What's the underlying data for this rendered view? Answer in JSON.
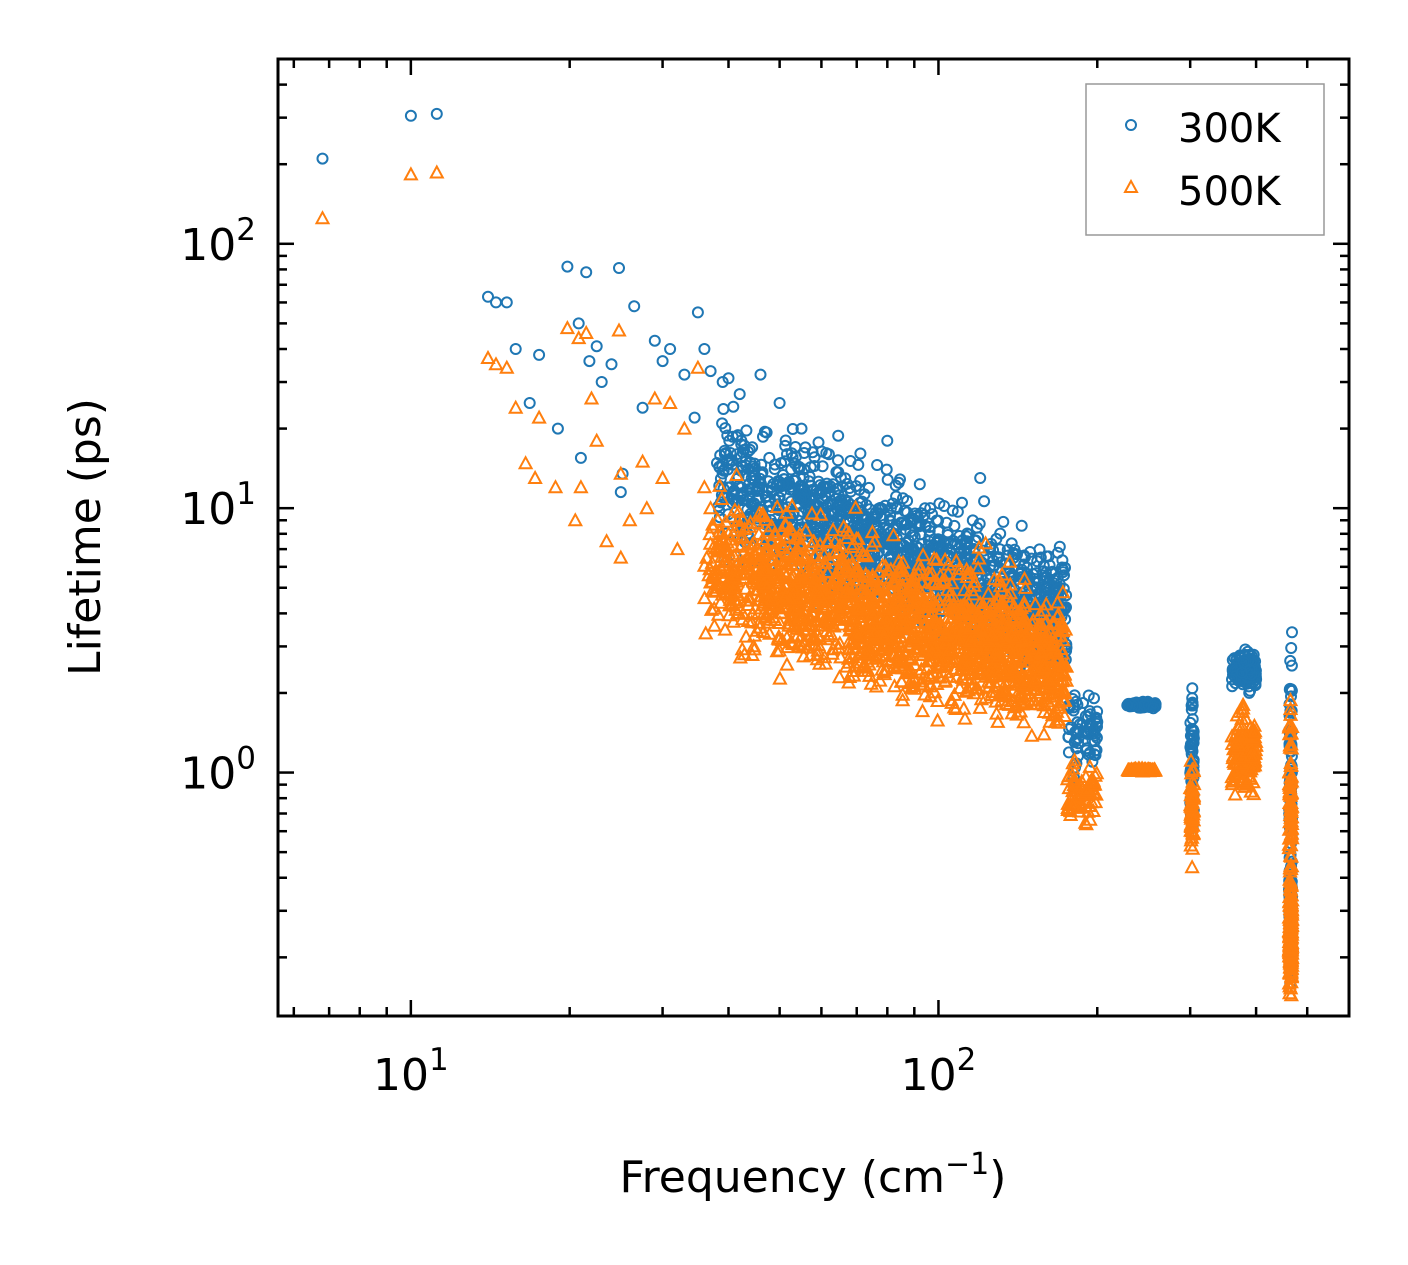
{
  "chart_data": {
    "type": "scatter",
    "xscale": "log",
    "yscale": "log",
    "xlim": [
      5.6,
      600
    ],
    "ylim": [
      0.12,
      500
    ],
    "xlabel": {
      "base": "Frequency (cm",
      "sup": "−1",
      "tail": ")"
    },
    "ylabel": "Lifetime (ps)",
    "xticks": [
      {
        "base": "10",
        "exp": "1",
        "value": 10
      },
      {
        "base": "10",
        "exp": "2",
        "value": 100
      }
    ],
    "yticks": [
      {
        "base": "10",
        "exp": "0",
        "value": 1
      },
      {
        "base": "10",
        "exp": "1",
        "value": 10
      },
      {
        "base": "10",
        "exp": "2",
        "value": 100
      }
    ],
    "legend": {
      "position": "top-right"
    },
    "series": [
      {
        "name": "300K",
        "marker": "circle",
        "color": "#1f77b4",
        "outliers": [
          [
            6.8,
            210
          ],
          [
            10.0,
            305
          ],
          [
            11.2,
            310
          ],
          [
            14.0,
            63
          ],
          [
            14.5,
            60
          ],
          [
            15.2,
            60
          ],
          [
            15.8,
            40
          ],
          [
            16.8,
            25
          ],
          [
            17.5,
            38
          ],
          [
            19.0,
            20
          ],
          [
            19.8,
            82
          ],
          [
            20.8,
            50
          ],
          [
            21.5,
            78
          ],
          [
            21.0,
            15.5
          ],
          [
            21.8,
            36
          ],
          [
            22.5,
            41
          ],
          [
            23.0,
            30
          ],
          [
            24.0,
            35
          ],
          [
            24.8,
            81
          ],
          [
            25.0,
            11.5
          ],
          [
            25.2,
            13.5
          ],
          [
            26.5,
            58
          ],
          [
            27.5,
            24
          ],
          [
            29.0,
            43
          ],
          [
            30.0,
            36
          ],
          [
            31.0,
            40
          ],
          [
            33.0,
            32
          ],
          [
            34.5,
            22
          ],
          [
            35.0,
            55
          ],
          [
            36.0,
            40
          ],
          [
            37.0,
            33
          ],
          [
            39.0,
            30
          ],
          [
            40.0,
            31
          ],
          [
            42.0,
            27
          ],
          [
            46.0,
            32
          ],
          [
            50.0,
            25
          ],
          [
            55.0,
            20
          ],
          [
            62.0,
            16
          ],
          [
            80.0,
            18
          ],
          [
            120.0,
            13
          ]
        ],
        "clusters": [
          {
            "x": [
              38,
              175
            ],
            "y_start": [
              18,
              5.2
            ],
            "y_end": [
              9,
              2.8
            ],
            "spread": 1.45,
            "n": 1500
          },
          {
            "x": [
              175,
              200
            ],
            "y_start": [
              1.8
            ],
            "y_end": [
              1.15
            ],
            "spread": 1.15,
            "n": 70
          },
          {
            "x": [
              228,
              258
            ],
            "y_start": [
              1.7
            ],
            "y_end": [
              1.9
            ],
            "spread": 1.18,
            "n": 90
          },
          {
            "x": [
              300,
              305
            ],
            "y_start": [
              1.85
            ],
            "y_end": [
              0.75
            ],
            "spread": 1.15,
            "n": 60
          },
          {
            "x": [
              360,
              400
            ],
            "y_start": [
              2.6
            ],
            "y_end": [
              2.3
            ],
            "spread": 1.2,
            "n": 140
          },
          {
            "x": [
              462,
              468
            ],
            "y_start": [
              2.6
            ],
            "y_end": [
              0.42
            ],
            "spread": 1.05,
            "n": 80
          },
          {
            "x": [
              462,
              468
            ],
            "y_start": [
              0.42
            ],
            "y_end": [
              0.2
            ],
            "spread": 1.1,
            "n": 150
          }
        ]
      },
      {
        "name": "500K",
        "marker": "triangle",
        "color": "#ff7f0e",
        "outliers": [
          [
            6.8,
            125
          ],
          [
            10.0,
            183
          ],
          [
            11.2,
            186
          ],
          [
            14.0,
            37
          ],
          [
            14.5,
            35
          ],
          [
            15.2,
            34
          ],
          [
            15.8,
            24
          ],
          [
            16.5,
            14.8
          ],
          [
            17.2,
            13
          ],
          [
            17.5,
            22
          ],
          [
            18.8,
            12
          ],
          [
            19.8,
            48
          ],
          [
            20.8,
            44
          ],
          [
            20.5,
            9
          ],
          [
            21.5,
            46
          ],
          [
            21.0,
            12
          ],
          [
            22.0,
            26
          ],
          [
            22.5,
            18
          ],
          [
            23.5,
            7.5
          ],
          [
            24.8,
            47
          ],
          [
            25.0,
            6.5
          ],
          [
            25.0,
            13.5
          ],
          [
            26.0,
            9
          ],
          [
            27.5,
            15
          ],
          [
            28.0,
            10
          ],
          [
            29.0,
            26
          ],
          [
            30.0,
            13
          ],
          [
            31.0,
            25
          ],
          [
            32.0,
            7
          ],
          [
            33.0,
            20
          ],
          [
            35.0,
            34
          ],
          [
            36.0,
            12
          ],
          [
            37.0,
            10
          ],
          [
            38.0,
            5
          ],
          [
            40.0,
            8
          ],
          [
            42.0,
            4.2
          ]
        ],
        "clusters": [
          {
            "x": [
              36,
              175
            ],
            "y_start": [
              9,
              3.6
            ],
            "y_end": [
              4.2,
              1.7
            ],
            "spread": 1.4,
            "n": 1800
          },
          {
            "x": [
              175,
              200
            ],
            "y_start": [
              1.0
            ],
            "y_end": [
              0.7
            ],
            "spread": 1.15,
            "n": 70
          },
          {
            "x": [
              228,
              258
            ],
            "y_start": [
              0.95
            ],
            "y_end": [
              1.1
            ],
            "spread": 1.15,
            "n": 90
          },
          {
            "x": [
              300,
              305
            ],
            "y_start": [
              1.1
            ],
            "y_end": [
              0.52
            ],
            "spread": 1.15,
            "n": 60
          },
          {
            "x": [
              360,
              400
            ],
            "y_start": [
              1.4
            ],
            "y_end": [
              1.0
            ],
            "spread": 1.25,
            "n": 150
          },
          {
            "x": [
              462,
              468
            ],
            "y_start": [
              1.65
            ],
            "y_end": [
              0.33
            ],
            "spread": 1.1,
            "n": 80
          },
          {
            "x": [
              462,
              468
            ],
            "y_start": [
              0.33
            ],
            "y_end": [
              0.17
            ],
            "spread": 1.1,
            "n": 170
          }
        ]
      }
    ]
  }
}
